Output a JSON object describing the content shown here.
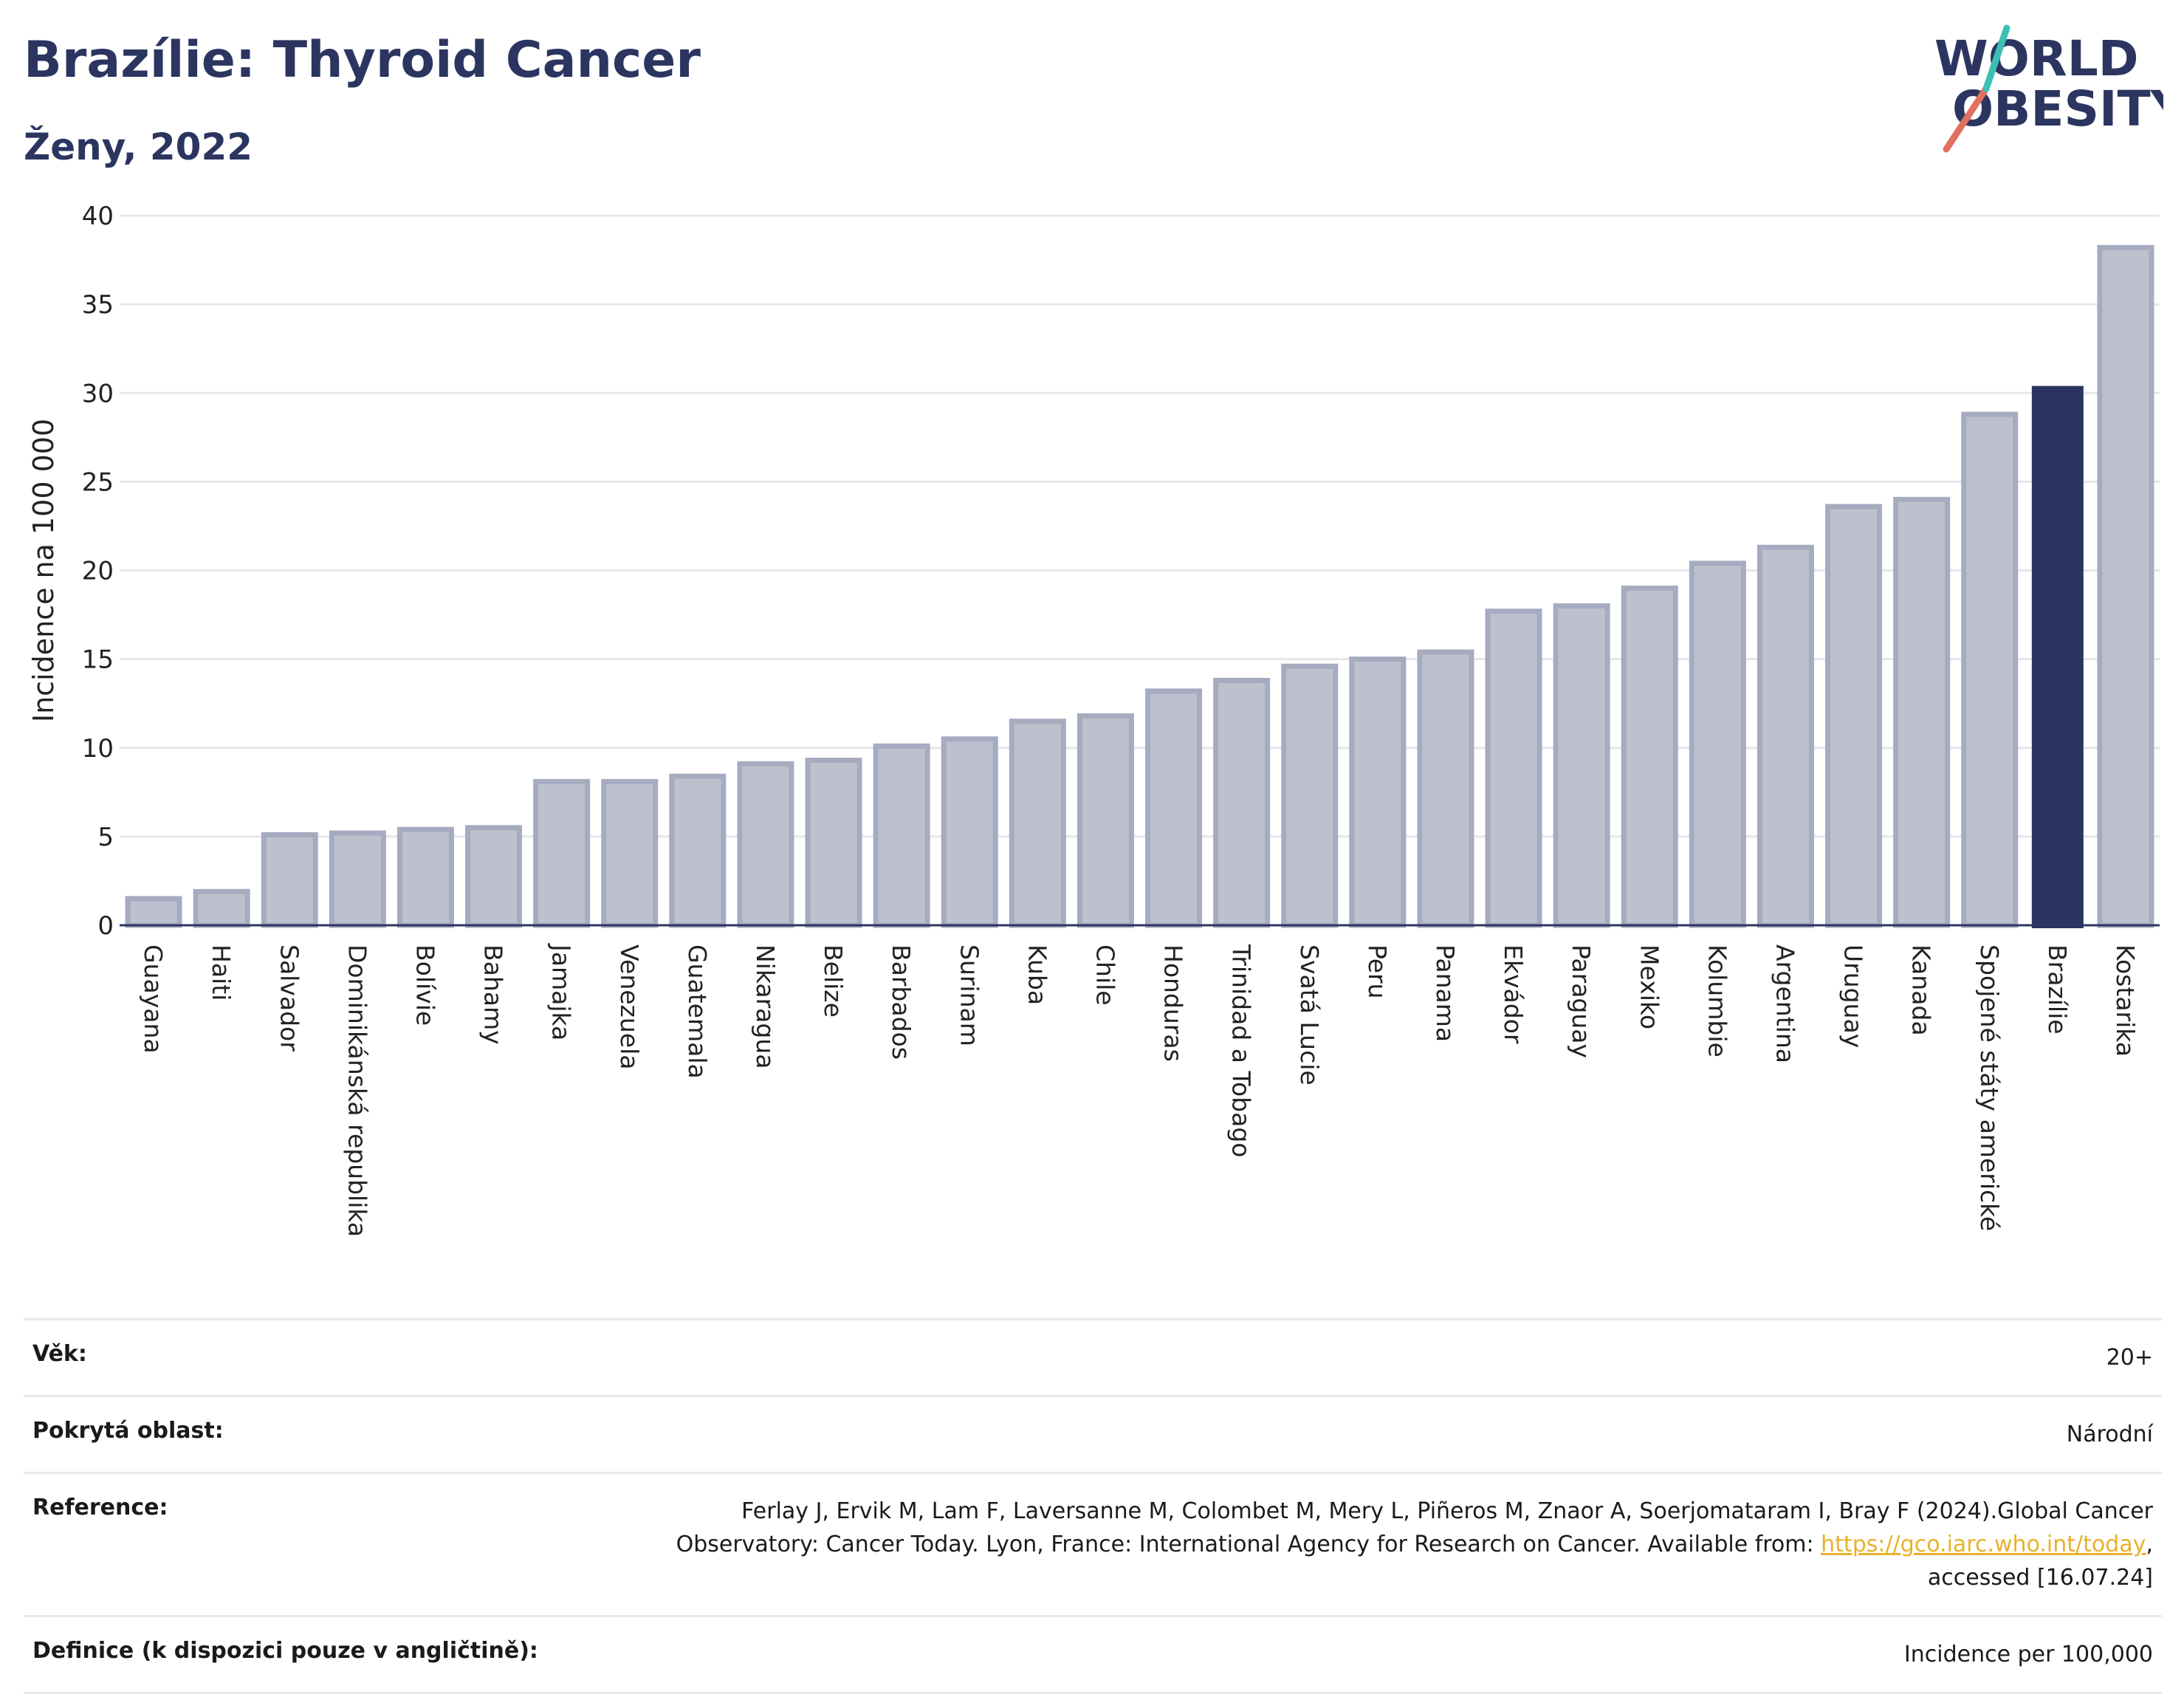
{
  "header": {
    "title": "Brazílie: Thyroid Cancer",
    "subtitle": "Ženy, 2022"
  },
  "logo": {
    "line1": "WORLD",
    "line2": "OBESITY",
    "colors": {
      "text": "#2b3560",
      "slash_red": "#e2705f",
      "slash_teal": "#3cbfb4"
    }
  },
  "chart_data": {
    "type": "bar",
    "title": "",
    "xlabel": "",
    "ylabel": "Incidence na 100 000",
    "ylim": [
      0,
      40
    ],
    "yticks": [
      0,
      5,
      10,
      15,
      20,
      25,
      30,
      35,
      40
    ],
    "grid": true,
    "legend": "none",
    "highlight": "Brazílie",
    "colors": {
      "bar": "#bdc1ce",
      "bar_border": "#a6abc0",
      "highlight": "#2b3560",
      "grid": "#e6e6ec"
    },
    "categories": [
      "Guayana",
      "Haiti",
      "Salvador",
      "Dominikánská republika",
      "Bolívie",
      "Bahamy",
      "Jamajka",
      "Venezuela",
      "Guatemala",
      "Nikaragua",
      "Belize",
      "Barbados",
      "Surinam",
      "Kuba",
      "Chile",
      "Honduras",
      "Trinidad a Tobago",
      "Svatá Lucie",
      "Peru",
      "Panama",
      "Ekvádor",
      "Paraguay",
      "Mexiko",
      "Kolumbie",
      "Argentina",
      "Uruguay",
      "Kanada",
      "Spojené státy americké",
      "Brazílie",
      "Kostarika"
    ],
    "values": [
      1.5,
      1.9,
      5.1,
      5.2,
      5.4,
      5.5,
      8.1,
      8.1,
      8.4,
      9.1,
      9.3,
      10.1,
      10.5,
      11.5,
      11.8,
      13.2,
      13.8,
      14.6,
      15.0,
      15.4,
      17.7,
      18.0,
      19.0,
      20.4,
      21.3,
      23.6,
      24.0,
      28.8,
      30.4,
      38.2
    ]
  },
  "info": {
    "age_label": "Věk:",
    "age_value": "20+",
    "coverage_label": "Pokrytá oblast:",
    "coverage_value": "Národní",
    "reference_label": "Reference:",
    "reference_line1": "Ferlay J, Ervik M, Lam F, Laversanne M, Colombet M, Mery L, Piñeros M, Znaor A, Soerjomataram I, Bray F (2024).Global Cancer",
    "reference_line2_pre": "Observatory: Cancer Today. Lyon, France: International Agency for Research on Cancer. Available from: ",
    "reference_link": "https://gco.iarc.who.int/today",
    "reference_line2_post": ",",
    "reference_line3": "accessed [16.07.24]",
    "definition_label": "Definice (k dispozici pouze v angličtině):",
    "definition_value": "Incidence per 100,000"
  }
}
